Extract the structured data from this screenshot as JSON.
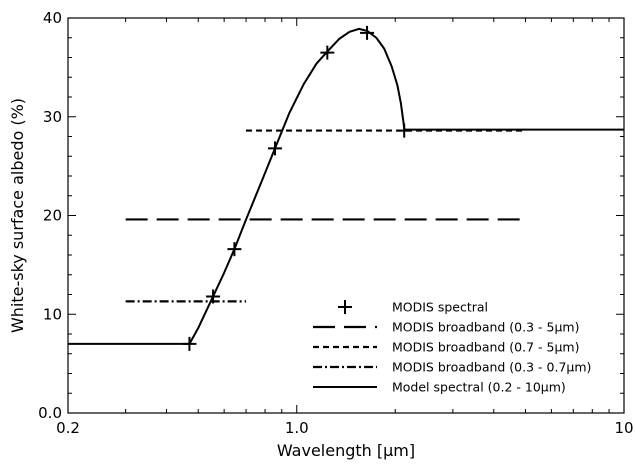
{
  "chart_data": {
    "type": "line",
    "title": "",
    "xlabel": "Wavelength [μm]",
    "ylabel": "White-sky surface albedo (%)",
    "x_scale": "log",
    "xlim": [
      0.2,
      10
    ],
    "ylim": [
      0,
      40
    ],
    "x_ticks": [
      {
        "value": 0.2,
        "label": "0.2"
      },
      {
        "value": 1.0,
        "label": "1.0"
      },
      {
        "value": 10,
        "label": "10"
      }
    ],
    "y_ticks": [
      {
        "value": 0,
        "label": "0.0"
      },
      {
        "value": 10,
        "label": "10"
      },
      {
        "value": 20,
        "label": "20"
      },
      {
        "value": 30,
        "label": "30"
      },
      {
        "value": 40,
        "label": "40"
      }
    ],
    "grid": false,
    "legend_position": "bottom-right",
    "series": [
      {
        "name": "MODIS spectral",
        "style": "marker-plus",
        "points": [
          {
            "x": 0.47,
            "y": 7.0
          },
          {
            "x": 0.555,
            "y": 11.8
          },
          {
            "x": 0.645,
            "y": 16.6
          },
          {
            "x": 0.858,
            "y": 26.8
          },
          {
            "x": 1.24,
            "y": 36.5
          },
          {
            "x": 1.64,
            "y": 38.5
          },
          {
            "x": 2.13,
            "y": 28.6
          }
        ]
      },
      {
        "name": "MODIS broadband (0.3 - 5μm)",
        "style": "long-dash",
        "points": [
          {
            "x": 0.3,
            "y": 19.6
          },
          {
            "x": 5.0,
            "y": 19.6
          }
        ]
      },
      {
        "name": "MODIS broadband (0.7 - 5μm)",
        "style": "short-dash",
        "points": [
          {
            "x": 0.7,
            "y": 28.6
          },
          {
            "x": 5.0,
            "y": 28.6
          }
        ]
      },
      {
        "name": "MODIS broadband (0.3 - 0.7μm)",
        "style": "dash-dot",
        "points": [
          {
            "x": 0.3,
            "y": 11.3
          },
          {
            "x": 0.7,
            "y": 11.3
          }
        ]
      },
      {
        "name": "Model spectral (0.2 - 10μm)",
        "style": "solid",
        "points": [
          {
            "x": 0.2,
            "y": 7.0
          },
          {
            "x": 0.47,
            "y": 7.0
          },
          {
            "x": 0.5,
            "y": 8.6
          },
          {
            "x": 0.555,
            "y": 11.8
          },
          {
            "x": 0.6,
            "y": 14.2
          },
          {
            "x": 0.645,
            "y": 16.6
          },
          {
            "x": 0.7,
            "y": 19.6
          },
          {
            "x": 0.78,
            "y": 23.4
          },
          {
            "x": 0.858,
            "y": 26.8
          },
          {
            "x": 0.95,
            "y": 30.4
          },
          {
            "x": 1.05,
            "y": 33.3
          },
          {
            "x": 1.15,
            "y": 35.4
          },
          {
            "x": 1.24,
            "y": 36.6
          },
          {
            "x": 1.35,
            "y": 37.9
          },
          {
            "x": 1.45,
            "y": 38.6
          },
          {
            "x": 1.55,
            "y": 38.9
          },
          {
            "x": 1.64,
            "y": 38.7
          },
          {
            "x": 1.75,
            "y": 38.0
          },
          {
            "x": 1.85,
            "y": 36.9
          },
          {
            "x": 1.95,
            "y": 35.1
          },
          {
            "x": 2.03,
            "y": 33.2
          },
          {
            "x": 2.08,
            "y": 31.4
          },
          {
            "x": 2.12,
            "y": 29.4
          },
          {
            "x": 2.13,
            "y": 28.7
          },
          {
            "x": 10,
            "y": 28.7
          }
        ]
      }
    ]
  }
}
